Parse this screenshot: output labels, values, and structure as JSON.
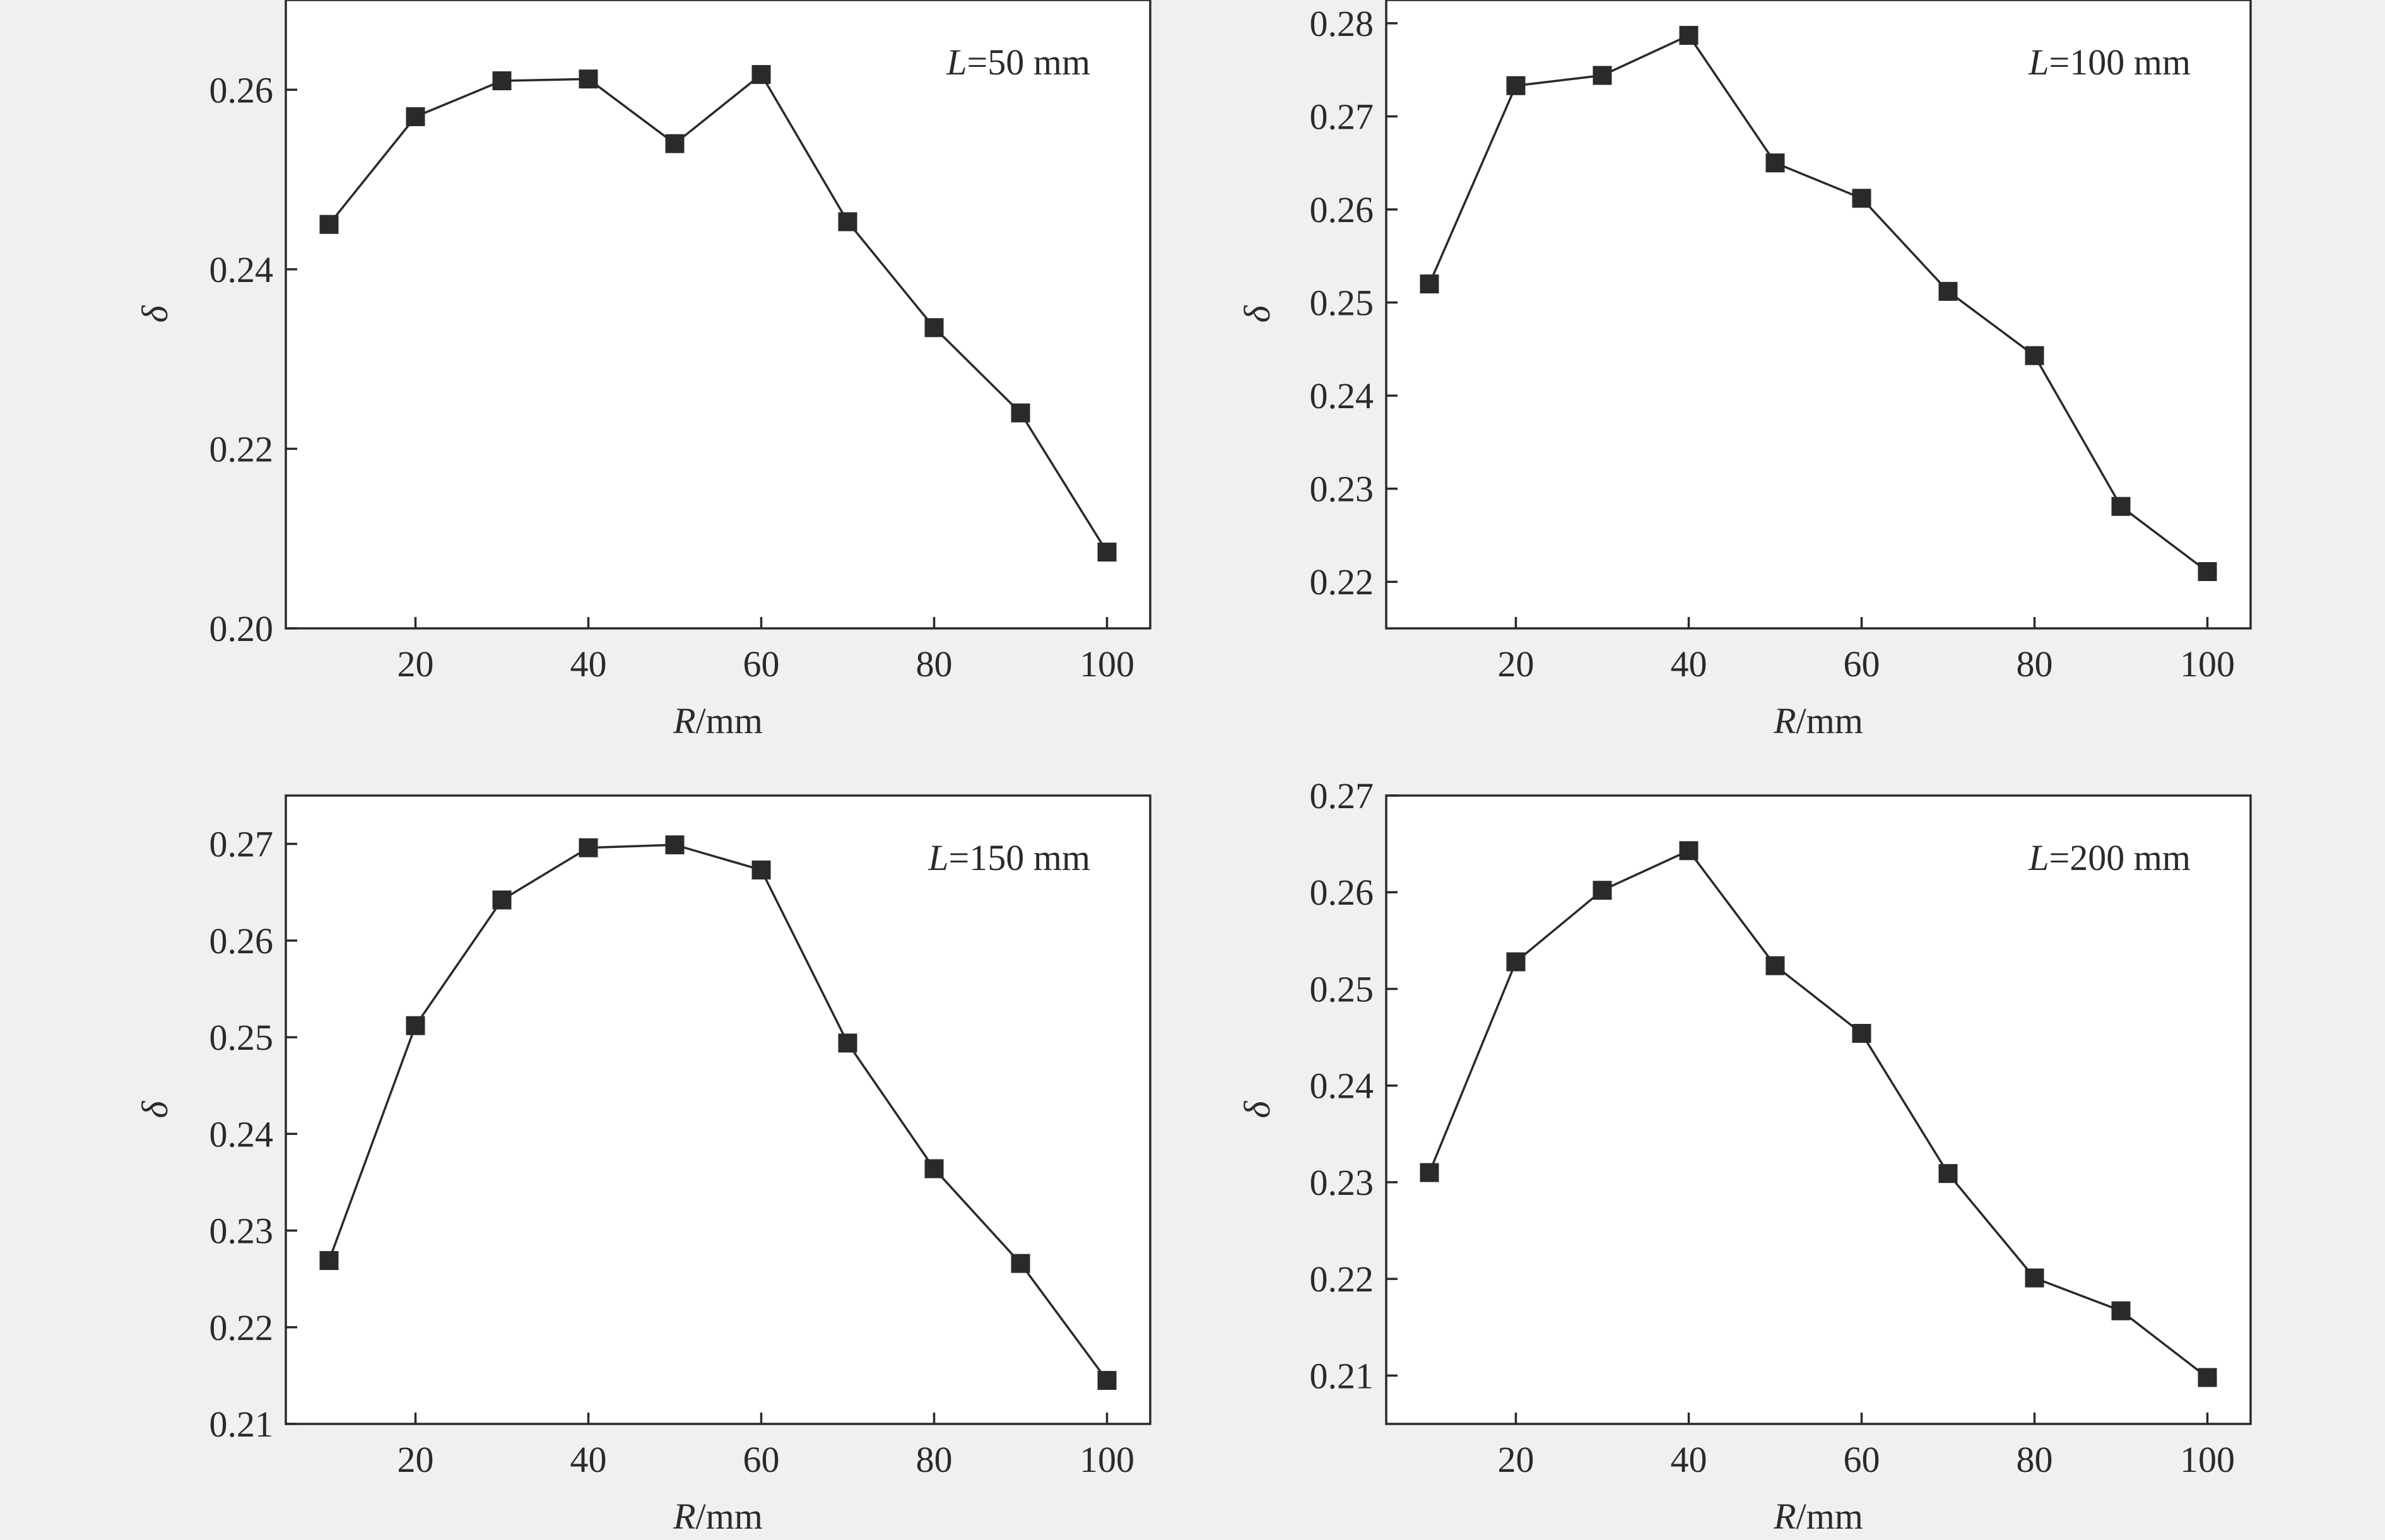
{
  "chart_data": [
    {
      "type": "line",
      "annotation": {
        "var": "L",
        "value": "=50 mm"
      },
      "xlabel": {
        "var": "R",
        "unit": "/mm"
      },
      "ylabel": "δ",
      "xlim": [
        5,
        105
      ],
      "ylim": [
        0.2,
        0.27
      ],
      "xticks": [
        20,
        40,
        60,
        80,
        100
      ],
      "yticks": [
        "0.20",
        "0.22",
        "0.24",
        "0.26"
      ],
      "series": [
        {
          "x": [
            10,
            20,
            30,
            40,
            50,
            60,
            70,
            80,
            90,
            100
          ],
          "y": [
            0.245,
            0.257,
            0.261,
            0.2612,
            0.254,
            0.2617,
            0.2453,
            0.2335,
            0.224,
            0.2085
          ]
        }
      ]
    },
    {
      "type": "line",
      "annotation": {
        "var": "L",
        "value": "=100 mm"
      },
      "xlabel": {
        "var": "R",
        "unit": "/mm"
      },
      "ylabel": "δ",
      "xlim": [
        5,
        105
      ],
      "ylim": [
        0.215,
        0.2825
      ],
      "xticks": [
        20,
        40,
        60,
        80,
        100
      ],
      "yticks": [
        "0.22",
        "0.23",
        "0.24",
        "0.25",
        "0.26",
        "0.27",
        "0.28"
      ],
      "series": [
        {
          "x": [
            10,
            20,
            30,
            40,
            50,
            60,
            70,
            80,
            90,
            100
          ],
          "y": [
            0.252,
            0.2733,
            0.2744,
            0.2787,
            0.265,
            0.2612,
            0.2512,
            0.2443,
            0.2281,
            0.2211
          ]
        }
      ]
    },
    {
      "type": "line",
      "annotation": {
        "var": "L",
        "value": "=150 mm"
      },
      "xlabel": {
        "var": "R",
        "unit": "/mm"
      },
      "ylabel": "δ",
      "xlim": [
        5,
        105
      ],
      "ylim": [
        0.21,
        0.275
      ],
      "xticks": [
        20,
        40,
        60,
        80,
        100
      ],
      "yticks": [
        "0.21",
        "0.22",
        "0.23",
        "0.24",
        "0.25",
        "0.26",
        "0.27"
      ],
      "series": [
        {
          "x": [
            10,
            20,
            30,
            40,
            50,
            60,
            70,
            80,
            90,
            100
          ],
          "y": [
            0.2269,
            0.2512,
            0.2642,
            0.2696,
            0.2699,
            0.2673,
            0.2494,
            0.2364,
            0.2266,
            0.2145
          ]
        }
      ]
    },
    {
      "type": "line",
      "annotation": {
        "var": "L",
        "value": "=200 mm"
      },
      "xlabel": {
        "var": "R",
        "unit": "/mm"
      },
      "ylabel": "δ",
      "xlim": [
        5,
        105
      ],
      "ylim": [
        0.205,
        0.27
      ],
      "xticks": [
        20,
        40,
        60,
        80,
        100
      ],
      "yticks": [
        "0.21",
        "0.22",
        "0.23",
        "0.24",
        "0.25",
        "0.26",
        "0.27"
      ],
      "series": [
        {
          "x": [
            10,
            20,
            30,
            40,
            50,
            60,
            70,
            80,
            90,
            100
          ],
          "y": [
            0.231,
            0.2528,
            0.2602,
            0.2643,
            0.2524,
            0.2454,
            0.2309,
            0.2201,
            0.2167,
            0.2098
          ]
        }
      ]
    }
  ]
}
